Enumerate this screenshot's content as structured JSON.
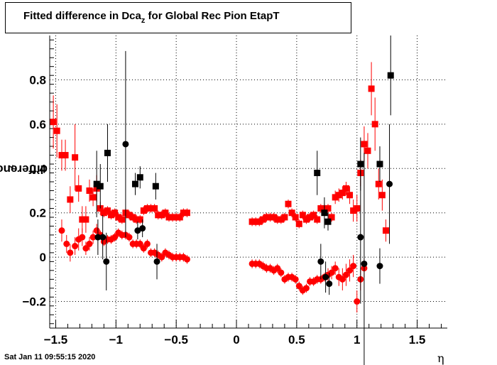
{
  "title": {
    "main": "Fitted difference in Dca",
    "sub": "z",
    "rest": " for Global Rec Pion EtapT"
  },
  "ylabel": {
    "main": "difference in Dca",
    "sub": "z"
  },
  "xlabel": "η",
  "datestamp": "Sat Jan 11 09:55:15 2020",
  "chart_data": {
    "type": "scatter",
    "title": "Fitted difference in Dca_z for Global Rec Pion EtapT",
    "xlabel": "η",
    "ylabel": "difference in Dca_z",
    "xlim": [
      -1.55,
      1.75
    ],
    "ylim": [
      -0.32,
      1.0
    ],
    "grid": true,
    "x_ticks": [
      -1.5,
      -1,
      -0.5,
      0,
      0.5,
      1,
      1.5
    ],
    "x_tick_labels": [
      "−1.5",
      "−1",
      "−0.5",
      "0",
      "0.5",
      "1",
      "1.5"
    ],
    "y_ticks": [
      -0.2,
      0,
      0.2,
      0.4,
      0.6,
      0.8
    ],
    "y_tick_labels": [
      "−0.2",
      "0",
      "0.2",
      "0.4",
      "0.6",
      "0.8"
    ],
    "series": [
      {
        "marker": "square",
        "color": "#ff0000",
        "points": [
          [
            -1.52,
            0.61,
            0.12
          ],
          [
            -1.49,
            0.57,
            0.12
          ],
          [
            -1.45,
            0.46,
            0.07
          ],
          [
            -1.42,
            0.46,
            0.07
          ],
          [
            -1.38,
            0.26,
            0.06
          ],
          [
            -1.34,
            0.45,
            0.15
          ],
          [
            -1.31,
            0.31,
            0.06
          ],
          [
            -1.28,
            0.17,
            0.06
          ],
          [
            -1.25,
            0.17,
            0.06
          ],
          [
            -1.22,
            0.3,
            0.05
          ],
          [
            -1.19,
            0.27,
            0.04
          ],
          [
            -1.16,
            0.31,
            0.06
          ],
          [
            -1.13,
            0.22,
            0.03
          ],
          [
            -1.1,
            0.2,
            0.02
          ],
          [
            -1.07,
            0.21,
            0.02
          ],
          [
            -1.04,
            0.19,
            0.02
          ],
          [
            -1.01,
            0.2,
            0.02
          ],
          [
            -0.98,
            0.18,
            0.02
          ],
          [
            -0.95,
            0.17,
            0.02
          ],
          [
            -0.92,
            0.2,
            0.02
          ],
          [
            -0.89,
            0.19,
            0.02
          ],
          [
            -0.86,
            0.18,
            0.02
          ],
          [
            -0.83,
            0.17,
            0.02
          ],
          [
            -0.8,
            0.17,
            0.02
          ],
          [
            -0.77,
            0.21,
            0.02
          ],
          [
            -0.74,
            0.22,
            0.02
          ],
          [
            -0.71,
            0.22,
            0.02
          ],
          [
            -0.68,
            0.22,
            0.02
          ],
          [
            -0.65,
            0.19,
            0.02
          ],
          [
            -0.62,
            0.19,
            0.02
          ],
          [
            -0.59,
            0.2,
            0.02
          ],
          [
            -0.56,
            0.18,
            0.02
          ],
          [
            -0.53,
            0.18,
            0.02
          ],
          [
            -0.5,
            0.18,
            0.02
          ],
          [
            -0.47,
            0.18,
            0.02
          ],
          [
            -0.44,
            0.2,
            0.02
          ],
          [
            -0.41,
            0.2,
            0.02
          ],
          [
            0.13,
            0.16,
            0.02
          ],
          [
            0.16,
            0.16,
            0.02
          ],
          [
            0.19,
            0.16,
            0.02
          ],
          [
            0.22,
            0.17,
            0.02
          ],
          [
            0.25,
            0.18,
            0.02
          ],
          [
            0.28,
            0.18,
            0.02
          ],
          [
            0.31,
            0.18,
            0.02
          ],
          [
            0.34,
            0.17,
            0.02
          ],
          [
            0.37,
            0.17,
            0.02
          ],
          [
            0.4,
            0.18,
            0.02
          ],
          [
            0.43,
            0.24,
            0.02
          ],
          [
            0.46,
            0.2,
            0.02
          ],
          [
            0.49,
            0.18,
            0.02
          ],
          [
            0.52,
            0.15,
            0.02
          ],
          [
            0.55,
            0.19,
            0.02
          ],
          [
            0.58,
            0.17,
            0.02
          ],
          [
            0.61,
            0.18,
            0.02
          ],
          [
            0.64,
            0.19,
            0.02
          ],
          [
            0.67,
            0.17,
            0.02
          ],
          [
            0.7,
            0.22,
            0.02
          ],
          [
            0.73,
            0.22,
            0.02
          ],
          [
            0.76,
            0.22,
            0.02
          ],
          [
            0.79,
            0.18,
            0.02
          ],
          [
            0.82,
            0.27,
            0.03
          ],
          [
            0.85,
            0.28,
            0.03
          ],
          [
            0.88,
            0.29,
            0.03
          ],
          [
            0.91,
            0.31,
            0.03
          ],
          [
            0.94,
            0.28,
            0.04
          ],
          [
            0.97,
            0.21,
            0.05
          ],
          [
            1.0,
            0.22,
            0.06
          ],
          [
            1.03,
            0.38,
            0.06
          ],
          [
            1.06,
            0.51,
            0.08
          ],
          [
            1.09,
            0.48,
            0.08
          ],
          [
            1.12,
            0.76,
            0.12
          ],
          [
            1.15,
            0.6,
            0.12
          ],
          [
            1.18,
            0.33,
            0.07
          ],
          [
            1.21,
            0.28,
            0.07
          ],
          [
            1.24,
            0.12,
            0.05
          ]
        ]
      },
      {
        "marker": "circle",
        "color": "#ff0000",
        "points": [
          [
            -1.45,
            0.12,
            0.05
          ],
          [
            -1.41,
            0.06,
            0.04
          ],
          [
            -1.38,
            0.02,
            0.04
          ],
          [
            -1.34,
            0.05,
            0.04
          ],
          [
            -1.31,
            0.08,
            0.05
          ],
          [
            -1.28,
            0.09,
            0.04
          ],
          [
            -1.25,
            0.04,
            0.03
          ],
          [
            -1.22,
            0.06,
            0.03
          ],
          [
            -1.19,
            0.09,
            0.03
          ],
          [
            -1.16,
            0.12,
            0.03
          ],
          [
            -1.13,
            0.1,
            0.02
          ],
          [
            -1.1,
            0.07,
            0.02
          ],
          [
            -1.07,
            0.08,
            0.02
          ],
          [
            -1.04,
            0.08,
            0.02
          ],
          [
            -1.01,
            0.09,
            0.02
          ],
          [
            -0.98,
            0.11,
            0.02
          ],
          [
            -0.95,
            0.1,
            0.02
          ],
          [
            -0.92,
            0.1,
            0.02
          ],
          [
            -0.89,
            0.09,
            0.02
          ],
          [
            -0.86,
            0.06,
            0.02
          ],
          [
            -0.83,
            0.06,
            0.02
          ],
          [
            -0.8,
            0.06,
            0.02
          ],
          [
            -0.77,
            0.04,
            0.02
          ],
          [
            -0.74,
            0.06,
            0.02
          ],
          [
            -0.71,
            0.02,
            0.02
          ],
          [
            -0.68,
            0.02,
            0.02
          ],
          [
            -0.65,
            0.01,
            0.02
          ],
          [
            -0.62,
            0.0,
            0.02
          ],
          [
            -0.59,
            0.02,
            0.02
          ],
          [
            -0.56,
            0.01,
            0.02
          ],
          [
            -0.53,
            0.0,
            0.02
          ],
          [
            -0.5,
            0.0,
            0.02
          ],
          [
            -0.47,
            0.0,
            0.02
          ],
          [
            -0.44,
            0.0,
            0.02
          ],
          [
            -0.41,
            -0.01,
            0.02
          ],
          [
            0.13,
            -0.03,
            0.02
          ],
          [
            0.16,
            -0.03,
            0.02
          ],
          [
            0.19,
            -0.03,
            0.02
          ],
          [
            0.22,
            -0.04,
            0.02
          ],
          [
            0.25,
            -0.05,
            0.02
          ],
          [
            0.28,
            -0.05,
            0.02
          ],
          [
            0.31,
            -0.06,
            0.02
          ],
          [
            0.34,
            -0.05,
            0.02
          ],
          [
            0.37,
            -0.07,
            0.02
          ],
          [
            0.4,
            -0.1,
            0.02
          ],
          [
            0.43,
            -0.09,
            0.02
          ],
          [
            0.46,
            -0.09,
            0.02
          ],
          [
            0.49,
            -0.1,
            0.02
          ],
          [
            0.52,
            -0.13,
            0.02
          ],
          [
            0.55,
            -0.15,
            0.02
          ],
          [
            0.58,
            -0.14,
            0.02
          ],
          [
            0.61,
            -0.11,
            0.02
          ],
          [
            0.64,
            -0.11,
            0.02
          ],
          [
            0.67,
            -0.1,
            0.02
          ],
          [
            0.7,
            -0.1,
            0.02
          ],
          [
            0.73,
            -0.09,
            0.02
          ],
          [
            0.76,
            -0.08,
            0.03
          ],
          [
            0.79,
            -0.07,
            0.03
          ],
          [
            0.82,
            -0.05,
            0.03
          ],
          [
            0.85,
            -0.09,
            0.04
          ],
          [
            0.88,
            -0.1,
            0.05
          ],
          [
            0.91,
            -0.08,
            0.05
          ],
          [
            0.94,
            -0.06,
            0.05
          ],
          [
            0.97,
            -0.04,
            0.05
          ],
          [
            1.0,
            -0.2,
            0.05
          ],
          [
            1.03,
            -0.1,
            0.05
          ],
          [
            1.06,
            -0.05,
            0.04
          ]
        ]
      },
      {
        "marker": "square",
        "color": "#000000",
        "points": [
          [
            -1.16,
            0.33,
            0.15
          ],
          [
            -1.13,
            0.32,
            0.1
          ],
          [
            -1.07,
            0.47,
            0.13
          ],
          [
            -0.84,
            0.33,
            0.05
          ],
          [
            -0.8,
            0.36,
            0.05
          ],
          [
            -0.67,
            0.32,
            0.06
          ],
          [
            0.67,
            0.38,
            0.1
          ],
          [
            0.73,
            0.2,
            0.07
          ],
          [
            0.76,
            0.16,
            0.04
          ],
          [
            1.03,
            0.42,
            0.12
          ],
          [
            1.19,
            0.42,
            0.08
          ],
          [
            1.28,
            0.82,
            0.18
          ]
        ]
      },
      {
        "marker": "circle",
        "color": "#000000",
        "points": [
          [
            -1.15,
            0.09,
            0.08
          ],
          [
            -1.11,
            0.09,
            0.1
          ],
          [
            -1.08,
            -0.02,
            0.13
          ],
          [
            -0.92,
            0.51,
            0.42
          ],
          [
            -0.82,
            0.12,
            0.04
          ],
          [
            -0.78,
            0.13,
            0.04
          ],
          [
            -0.66,
            -0.02,
            0.08
          ],
          [
            0.7,
            -0.02,
            0.08
          ],
          [
            0.74,
            -0.09,
            0.07
          ],
          [
            0.77,
            -0.12,
            0.05
          ],
          [
            1.03,
            0.09,
            0.3
          ],
          [
            1.06,
            -0.03,
            0.5
          ],
          [
            1.19,
            -0.04,
            0.08
          ],
          [
            1.27,
            0.33,
            0.27
          ]
        ]
      }
    ]
  }
}
